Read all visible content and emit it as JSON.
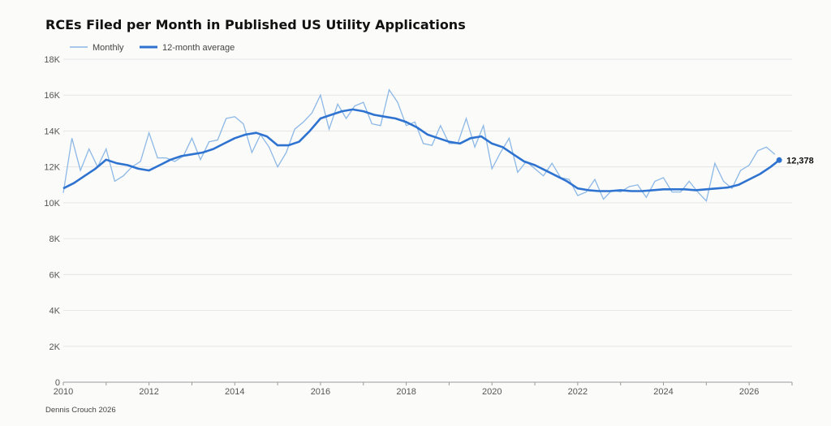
{
  "chart_data": {
    "type": "line",
    "title": "RCEs Filed per Month in Published US Utility Applications",
    "credit": "Dennis Crouch 2026",
    "legend_position": "top-left",
    "grid": true,
    "xlim": [
      2010.0,
      2027.0
    ],
    "ylim": [
      0,
      18000
    ],
    "x_ticks": [
      2010,
      2012,
      2014,
      2016,
      2018,
      2020,
      2022,
      2024,
      2026
    ],
    "x_tick_labels": [
      "2010",
      "2012",
      "2014",
      "2016",
      "2018",
      "2020",
      "2022",
      "2024",
      "2026"
    ],
    "y_ticks": [
      0,
      2000,
      4000,
      6000,
      8000,
      10000,
      12000,
      14000,
      16000,
      18000
    ],
    "y_tick_labels": [
      "0",
      "2K",
      "4K",
      "6K",
      "8K",
      "10K",
      "12K",
      "14K",
      "16K",
      "18K"
    ],
    "end_label": "12,378",
    "colors": {
      "monthly": "#8cb8e6",
      "average": "#2f73d0"
    },
    "series": [
      {
        "name": "Monthly",
        "x": [
          2010.0,
          2010.2,
          2010.4,
          2010.6,
          2010.8,
          2011.0,
          2011.2,
          2011.4,
          2011.6,
          2011.8,
          2012.0,
          2012.2,
          2012.4,
          2012.6,
          2012.8,
          2013.0,
          2013.2,
          2013.4,
          2013.6,
          2013.8,
          2014.0,
          2014.2,
          2014.4,
          2014.6,
          2014.8,
          2015.0,
          2015.2,
          2015.4,
          2015.6,
          2015.8,
          2016.0,
          2016.2,
          2016.4,
          2016.6,
          2016.8,
          2017.0,
          2017.2,
          2017.4,
          2017.6,
          2017.8,
          2018.0,
          2018.2,
          2018.4,
          2018.6,
          2018.8,
          2019.0,
          2019.2,
          2019.4,
          2019.6,
          2019.8,
          2020.0,
          2020.2,
          2020.4,
          2020.6,
          2020.8,
          2021.0,
          2021.2,
          2021.4,
          2021.6,
          2021.8,
          2022.0,
          2022.2,
          2022.4,
          2022.6,
          2022.8,
          2023.0,
          2023.2,
          2023.4,
          2023.6,
          2023.8,
          2024.0,
          2024.2,
          2024.4,
          2024.6,
          2024.8,
          2025.0,
          2025.2,
          2025.4,
          2025.6,
          2025.8,
          2026.0,
          2026.2,
          2026.4,
          2026.6
        ],
        "values": [
          10550,
          13600,
          11800,
          13000,
          12000,
          13000,
          11200,
          11500,
          12000,
          12300,
          13900,
          12500,
          12500,
          12300,
          12600,
          13600,
          12400,
          13400,
          13500,
          14700,
          14800,
          14400,
          12800,
          13800,
          13100,
          12000,
          12800,
          14100,
          14500,
          15000,
          16000,
          14100,
          15500,
          14700,
          15400,
          15600,
          14400,
          14300,
          16300,
          15600,
          14300,
          14500,
          13300,
          13200,
          14300,
          13300,
          13300,
          14700,
          13100,
          14300,
          11900,
          12800,
          13600,
          11700,
          12300,
          11900,
          11500,
          12200,
          11400,
          11300,
          10400,
          10600,
          11300,
          10200,
          10700,
          10600,
          10900,
          11000,
          10300,
          11200,
          11400,
          10600,
          10600,
          11200,
          10600,
          10100,
          12200,
          11200,
          10800,
          11800,
          12100,
          12900,
          13100,
          12700
        ]
      },
      {
        "name": "12-month average",
        "x": [
          2010.0,
          2010.25,
          2010.5,
          2010.75,
          2011.0,
          2011.25,
          2011.5,
          2011.75,
          2012.0,
          2012.25,
          2012.5,
          2012.75,
          2013.0,
          2013.25,
          2013.5,
          2013.75,
          2014.0,
          2014.25,
          2014.5,
          2014.75,
          2015.0,
          2015.25,
          2015.5,
          2015.75,
          2016.0,
          2016.25,
          2016.5,
          2016.75,
          2017.0,
          2017.25,
          2017.5,
          2017.75,
          2018.0,
          2018.25,
          2018.5,
          2018.75,
          2019.0,
          2019.25,
          2019.5,
          2019.75,
          2020.0,
          2020.25,
          2020.5,
          2020.75,
          2021.0,
          2021.25,
          2021.5,
          2021.75,
          2022.0,
          2022.25,
          2022.5,
          2022.75,
          2023.0,
          2023.25,
          2023.5,
          2023.75,
          2024.0,
          2024.25,
          2024.5,
          2024.75,
          2025.0,
          2025.25,
          2025.5,
          2025.75,
          2026.0,
          2026.25,
          2026.5,
          2026.7
        ],
        "values": [
          10800,
          11100,
          11500,
          11900,
          12400,
          12200,
          12100,
          11900,
          11800,
          12100,
          12400,
          12600,
          12700,
          12800,
          13000,
          13300,
          13600,
          13800,
          13900,
          13700,
          13200,
          13200,
          13400,
          14000,
          14700,
          14900,
          15100,
          15200,
          15100,
          14900,
          14800,
          14700,
          14500,
          14200,
          13800,
          13600,
          13400,
          13300,
          13600,
          13700,
          13300,
          13100,
          12700,
          12300,
          12100,
          11800,
          11500,
          11200,
          10800,
          10700,
          10650,
          10650,
          10700,
          10650,
          10650,
          10700,
          10750,
          10750,
          10750,
          10700,
          10750,
          10800,
          10850,
          11000,
          11300,
          11600,
          12000,
          12378
        ]
      }
    ]
  }
}
